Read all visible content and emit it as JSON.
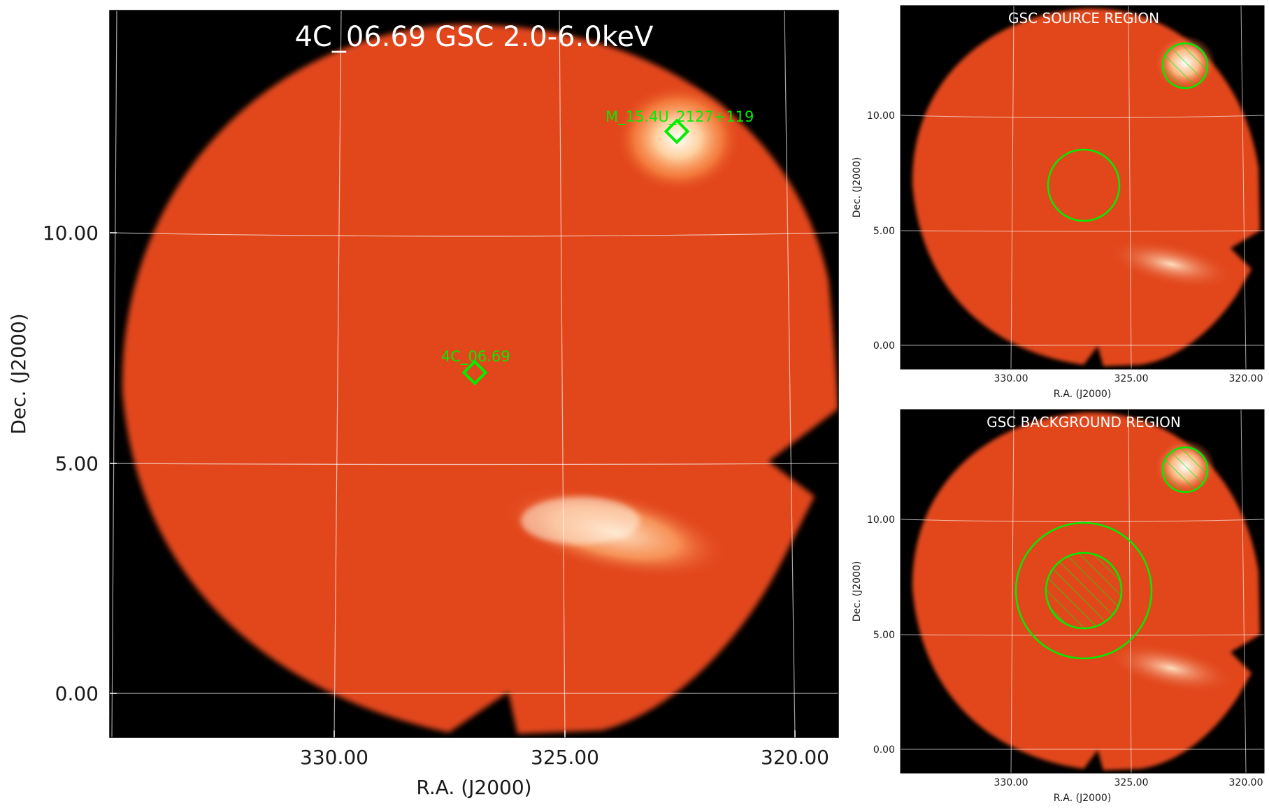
{
  "main": {
    "title": "4C_06.69 GSC 2.0-6.0keV",
    "xlabel": "R.A. (J2000)",
    "ylabel": "Dec. (J2000)",
    "xticks": [
      "330.00",
      "325.00",
      "320.00"
    ],
    "yticks": [
      "10.00",
      "5.00",
      "0.00"
    ],
    "sources": [
      {
        "label": "M_15.4U_2127+119"
      },
      {
        "label": "4C_06.69"
      }
    ]
  },
  "source_region": {
    "title": "GSC SOURCE REGION",
    "xlabel": "R.A. (J2000)",
    "ylabel": "Dec. (J2000)",
    "xticks": [
      "330.00",
      "325.00",
      "320.00"
    ],
    "yticks": [
      "10.00",
      "5.00",
      "0.00"
    ]
  },
  "background_region": {
    "title": "GSC BACKGROUND REGION",
    "xlabel": "R.A. (J2000)",
    "ylabel": "Dec. (J2000)",
    "xticks": [
      "330.00",
      "325.00",
      "320.00"
    ],
    "yticks": [
      "10.00",
      "5.00",
      "0.00"
    ]
  },
  "colors": {
    "background": "#000000",
    "map_fill": "#e2461a",
    "region": "#00ee00",
    "grid": "#ffffff"
  }
}
